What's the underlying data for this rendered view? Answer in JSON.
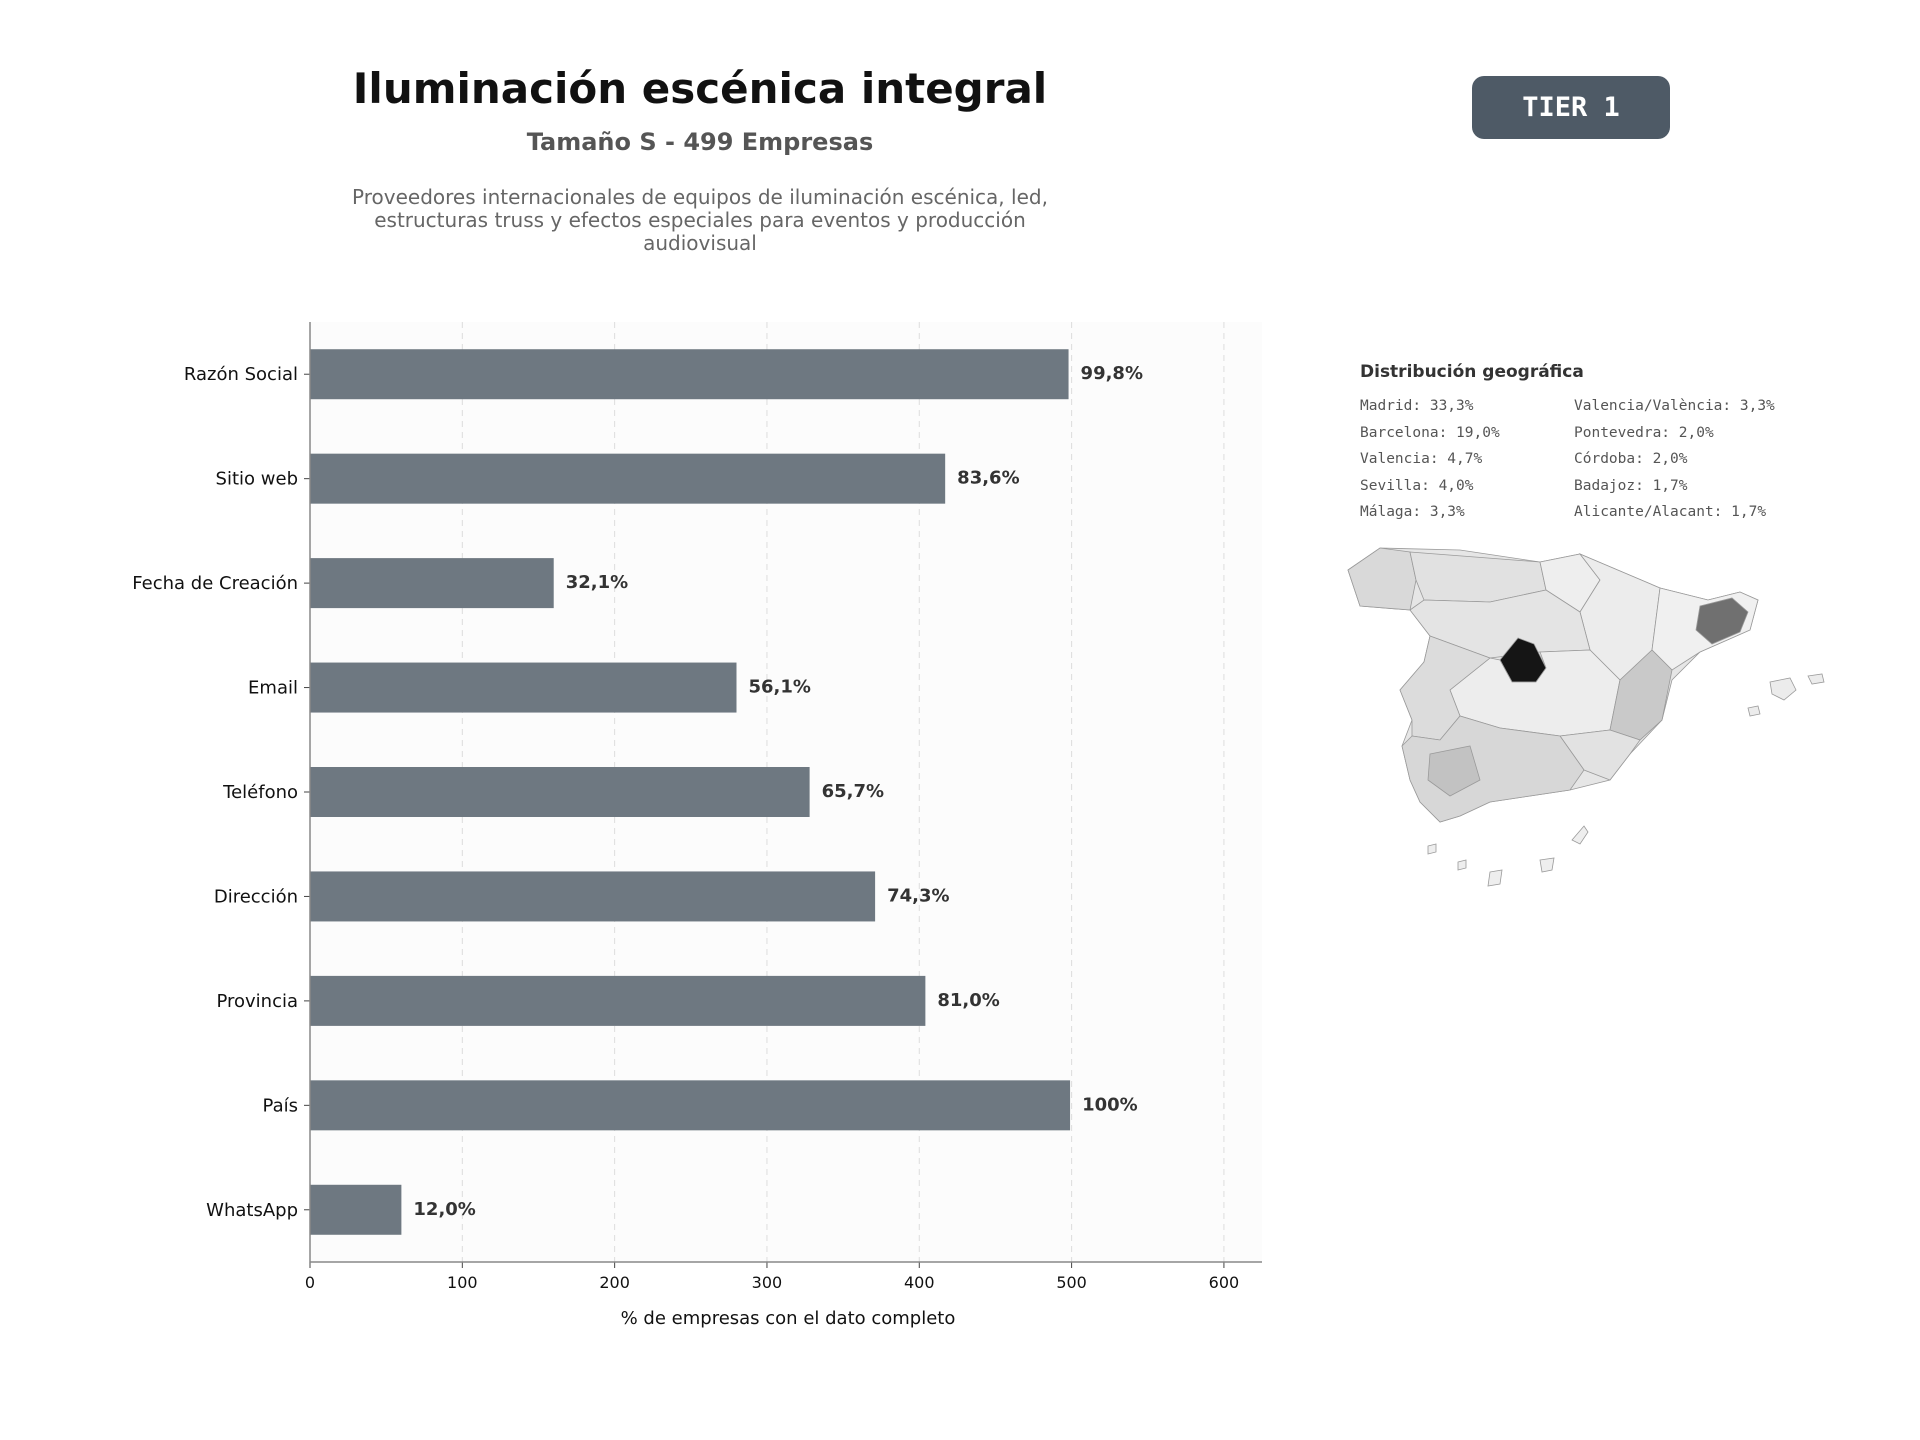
{
  "header": {
    "title": "Iluminación escénica integral",
    "subtitle": "Tamaño S - 499 Empresas",
    "description": "Proveedores internacionales de equipos de iluminación escénica, led, estructuras truss y efectos especiales para eventos y producción audiovisual",
    "badge": "TIER 1"
  },
  "colors": {
    "bar": "#6e7881",
    "badge": "#4e5a66",
    "plot_bg": "#fcfcfc"
  },
  "chart_data": {
    "type": "bar",
    "orientation": "horizontal",
    "categories": [
      "Razón Social",
      "Sitio web",
      "Fecha de Creación",
      "Email",
      "Teléfono",
      "Dirección",
      "Provincia",
      "País",
      "WhatsApp"
    ],
    "values": [
      498,
      417,
      160,
      280,
      328,
      371,
      404,
      499,
      60
    ],
    "data_labels": [
      "99,8%",
      "83,6%",
      "32,1%",
      "56,1%",
      "65,7%",
      "74,3%",
      "81,0%",
      "100%",
      "12,0%"
    ],
    "xlabel": "% de empresas con el dato completo",
    "ylabel": "",
    "xlim": [
      0,
      625
    ],
    "xticks": [
      0,
      100,
      200,
      300,
      400,
      500,
      600
    ],
    "grid": "vertical dashed"
  },
  "geo": {
    "title": "Distribución geográfica",
    "items": [
      "Madrid: 33,3%",
      "Barcelona: 19,0%",
      "Valencia: 4,7%",
      "Sevilla: 4,0%",
      "Málaga: 3,3%",
      "Valencia/València: 3,3%",
      "Pontevedra: 2,0%",
      "Córdoba: 2,0%",
      "Badajoz: 1,7%",
      "Alicante/Alacant: 1,7%"
    ]
  }
}
